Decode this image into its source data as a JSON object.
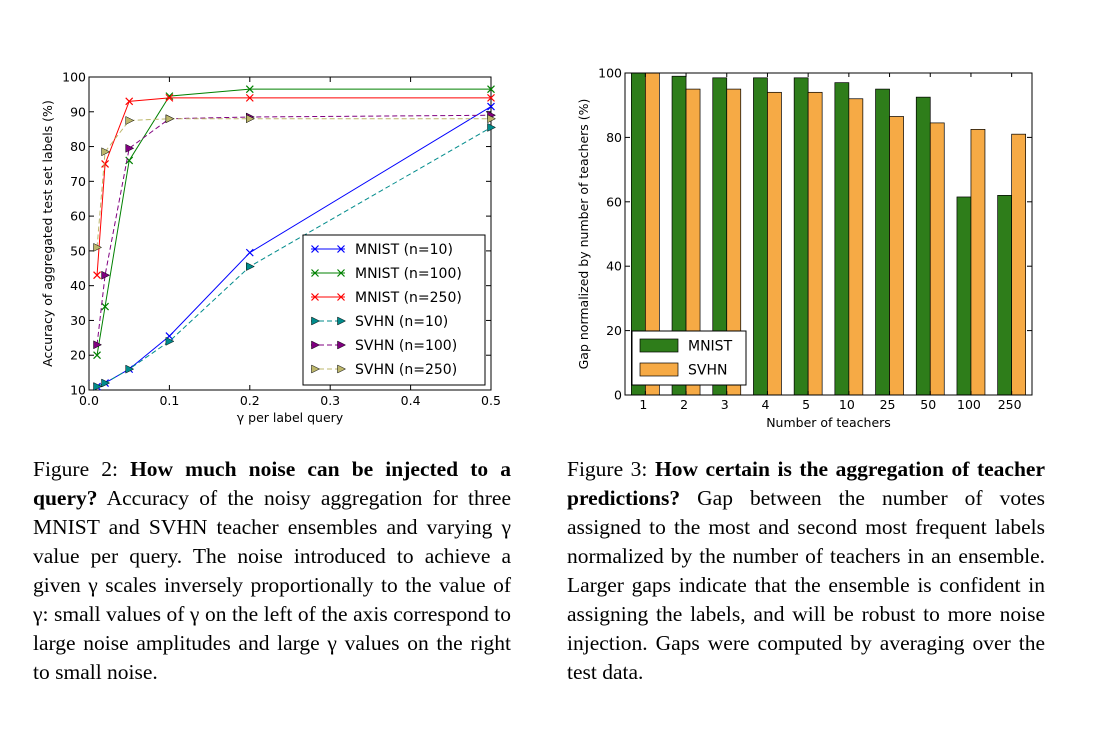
{
  "chart_data": [
    {
      "type": "line",
      "xlabel": "γ per label query",
      "ylabel": "Accuracy of aggregated test set labels (%)",
      "xlim": [
        0,
        0.5
      ],
      "ylim": [
        10,
        100
      ],
      "x_ticks": [
        "0.0",
        "0.1",
        "0.2",
        "0.3",
        "0.4",
        "0.5"
      ],
      "y_ticks": [
        "10",
        "20",
        "30",
        "40",
        "50",
        "60",
        "70",
        "80",
        "90",
        "100"
      ],
      "legend_position": "center-right",
      "grid": false,
      "series": [
        {
          "name": "MNIST (n=10)",
          "color": "#0000ff",
          "style": "solid",
          "marker": "x",
          "x": [
            0.01,
            0.02,
            0.05,
            0.1,
            0.2,
            0.5
          ],
          "y": [
            11,
            12,
            16,
            25.5,
            49.5,
            91.5
          ]
        },
        {
          "name": "MNIST (n=100)",
          "color": "#008000",
          "style": "solid",
          "marker": "x",
          "x": [
            0.01,
            0.02,
            0.05,
            0.1,
            0.2,
            0.5
          ],
          "y": [
            20,
            34,
            76,
            94.5,
            96.5,
            96.5
          ]
        },
        {
          "name": "MNIST (n=250)",
          "color": "#ff0000",
          "style": "solid",
          "marker": "x",
          "x": [
            0.01,
            0.02,
            0.05,
            0.1,
            0.2,
            0.5
          ],
          "y": [
            43,
            75,
            93,
            94,
            94,
            94
          ]
        },
        {
          "name": "SVHN (n=10)",
          "color": "#008b8b",
          "style": "dashed",
          "marker": "triangle-right",
          "x": [
            0.01,
            0.02,
            0.05,
            0.1,
            0.2,
            0.5
          ],
          "y": [
            11,
            12,
            16,
            24,
            45.5,
            85.5
          ]
        },
        {
          "name": "SVHN (n=100)",
          "color": "#800080",
          "style": "dashed",
          "marker": "triangle-right",
          "x": [
            0.01,
            0.02,
            0.05,
            0.1,
            0.2,
            0.5
          ],
          "y": [
            23,
            43,
            79.5,
            88,
            88.5,
            89
          ]
        },
        {
          "name": "SVHN (n=250)",
          "color": "#bdb76b",
          "style": "dashed",
          "marker": "triangle-right",
          "x": [
            0.01,
            0.02,
            0.05,
            0.1,
            0.2,
            0.5
          ],
          "y": [
            51,
            78.5,
            87.5,
            88,
            88,
            88
          ]
        }
      ]
    },
    {
      "type": "bar",
      "xlabel": "Number of teachers",
      "ylabel": "Gap normalized by number of teachers (%)",
      "ylim": [
        0,
        100
      ],
      "y_ticks": [
        "0",
        "20",
        "40",
        "60",
        "80",
        "100"
      ],
      "categories": [
        "1",
        "2",
        "3",
        "4",
        "5",
        "10",
        "25",
        "50",
        "100",
        "250"
      ],
      "legend_position": "lower-left",
      "grid": false,
      "series": [
        {
          "name": "MNIST",
          "color": "#2e7d1a",
          "values": [
            100,
            99,
            98.5,
            98.5,
            98.5,
            97,
            95,
            92.5,
            61.5,
            62
          ]
        },
        {
          "name": "SVHN",
          "color": "#f6aa45",
          "values": [
            100,
            95,
            95,
            94,
            94,
            92,
            86.5,
            84.5,
            82.5,
            81
          ]
        }
      ]
    }
  ],
  "captions": {
    "fig2": {
      "label": "Figure 2: ",
      "title": "How much noise can be injected to a query?",
      "body": " Accuracy of the noisy aggregation for three MNIST and SVHN teacher ensembles and varying γ value per query. The noise introduced to achieve a given γ scales inversely proportionally to the value of γ: small values of γ on the left of the axis correspond to large noise amplitudes and large γ values on the right to small noise."
    },
    "fig3": {
      "label": "Figure 3: ",
      "title": "How certain is the aggregation of teacher predictions?",
      "body": " Gap between the number of votes assigned to the most and second most frequent labels normalized by the number of teachers in an ensemble. Larger gaps indicate that the ensemble is confident in assigning the labels, and will be robust to more noise injection. Gaps were computed by averaging over the test data."
    }
  }
}
